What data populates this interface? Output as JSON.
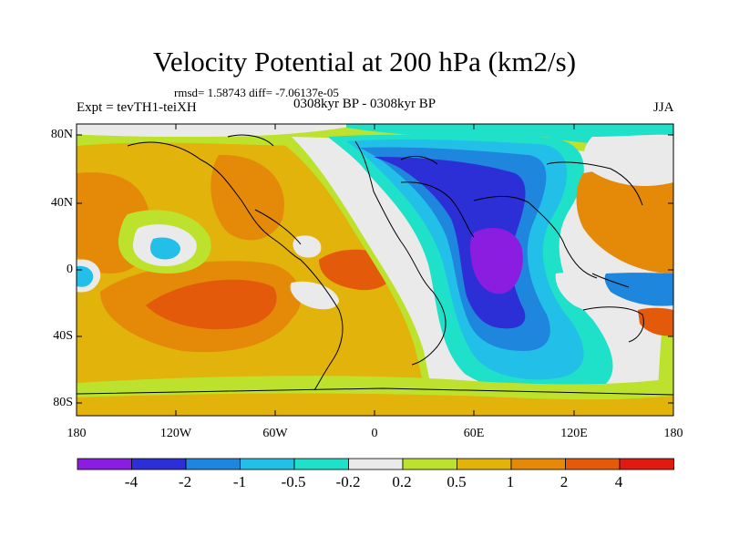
{
  "header": {
    "title": "Velocity Potential at 200 hPa (km2/s)",
    "stats": "rmsd= 1.58743 diff= -7.06137e-05",
    "experiment": "Expt = tevTH1-teiXH",
    "period": "0308kyr BP - 0308kyr BP",
    "season": "JJA"
  },
  "axes": {
    "lat_labels": [
      "80N",
      "40N",
      "0",
      "40S",
      "80S"
    ],
    "lon_labels": [
      "180",
      "120W",
      "60W",
      "0",
      "60E",
      "120E",
      "180"
    ]
  },
  "colorbar": {
    "colors": [
      "#8a1de0",
      "#2c2fd6",
      "#1f86dd",
      "#22c0e8",
      "#1fe0c8",
      "#eaeaea",
      "#bde22d",
      "#e1b30b",
      "#e48a08",
      "#e25a0a",
      "#e01a10"
    ],
    "labels": [
      "-4",
      "-2",
      "-1",
      "-0.5",
      "-0.2",
      "0.2",
      "0.5",
      "1",
      "2",
      "4"
    ]
  },
  "map_colors": {
    "ocean_bg": "#e1b30b",
    "coast": "#000000"
  }
}
